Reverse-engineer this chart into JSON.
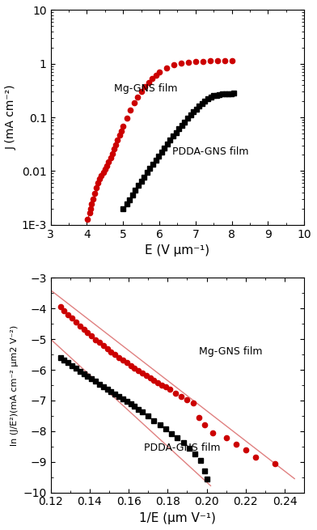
{
  "fig_width": 3.92,
  "fig_height": 6.55,
  "dpi": 100,
  "plot1": {
    "xlabel": "E (V μm⁻¹)",
    "ylabel": "J (mA cm⁻²)",
    "xlim": [
      3,
      10
    ],
    "ylim_log": [
      0.001,
      10
    ],
    "xticks": [
      3,
      4,
      5,
      6,
      7,
      8,
      9,
      10
    ],
    "mg_label": "Mg-GNS film",
    "pdda_label": "PDDA-GNS film",
    "mg_color": "#cc0000",
    "pdda_color": "#000000",
    "mg_marker": "o",
    "pdda_marker": "s",
    "mg_markersize": 4.5,
    "pdda_markersize": 4.5,
    "mg_E": [
      4.02,
      4.07,
      4.1,
      4.13,
      4.17,
      4.21,
      4.25,
      4.3,
      4.35,
      4.4,
      4.45,
      4.5,
      4.55,
      4.6,
      4.65,
      4.7,
      4.75,
      4.8,
      4.85,
      4.9,
      4.95,
      5.0,
      5.1,
      5.2,
      5.3,
      5.4,
      5.5,
      5.6,
      5.7,
      5.8,
      5.9,
      6.0,
      6.2,
      6.4,
      6.6,
      6.8,
      7.0,
      7.2,
      7.4,
      7.6,
      7.8,
      8.0
    ],
    "mg_J": [
      0.00125,
      0.00165,
      0.002,
      0.0024,
      0.003,
      0.0038,
      0.0048,
      0.0061,
      0.0072,
      0.0082,
      0.0093,
      0.0107,
      0.0125,
      0.0148,
      0.0175,
      0.021,
      0.0255,
      0.031,
      0.038,
      0.046,
      0.056,
      0.068,
      0.098,
      0.138,
      0.185,
      0.24,
      0.3,
      0.37,
      0.445,
      0.525,
      0.61,
      0.7,
      0.84,
      0.95,
      1.01,
      1.06,
      1.09,
      1.11,
      1.12,
      1.13,
      1.14,
      1.15
    ],
    "pdda_E": [
      5.0,
      5.1,
      5.18,
      5.26,
      5.34,
      5.42,
      5.5,
      5.58,
      5.66,
      5.74,
      5.82,
      5.9,
      5.98,
      6.06,
      6.14,
      6.22,
      6.3,
      6.38,
      6.46,
      6.54,
      6.62,
      6.7,
      6.78,
      6.86,
      6.94,
      7.02,
      7.1,
      7.18,
      7.26,
      7.34,
      7.42,
      7.5,
      7.58,
      7.66,
      7.74,
      7.82,
      7.9,
      7.98,
      8.06
    ],
    "pdda_J": [
      0.002,
      0.00245,
      0.00295,
      0.0036,
      0.0044,
      0.0054,
      0.0065,
      0.0078,
      0.0094,
      0.0113,
      0.0135,
      0.0161,
      0.0192,
      0.0228,
      0.027,
      0.032,
      0.0378,
      0.0444,
      0.052,
      0.0608,
      0.071,
      0.0825,
      0.0955,
      0.11,
      0.126,
      0.144,
      0.163,
      0.182,
      0.202,
      0.22,
      0.238,
      0.252,
      0.26,
      0.267,
      0.272,
      0.276,
      0.278,
      0.279,
      0.28
    ],
    "mg_line_E": [
      4.02,
      4.45
    ],
    "mg_line_J": [
      0.00125,
      0.0093
    ],
    "line_color_mg": "#cc0000"
  },
  "plot2": {
    "xlabel": "1/E (μm V⁻¹)",
    "ylabel": "ln (J/E²)(mA cm⁻² μm2 V⁻²)",
    "xlim": [
      0.12,
      0.25
    ],
    "ylim": [
      -10,
      -3
    ],
    "xticks": [
      0.12,
      0.14,
      0.16,
      0.18,
      0.2,
      0.22,
      0.24
    ],
    "yticks": [
      -10,
      -9,
      -8,
      -7,
      -6,
      -5,
      -4,
      -3
    ],
    "mg_label": "Mg-GNS film",
    "pdda_label": "PDDA-GNS film",
    "mg_color": "#cc0000",
    "pdda_color": "#000000",
    "mg_marker": "o",
    "pdda_marker": "s",
    "mg_markersize": 4.5,
    "pdda_markersize": 4.5,
    "mg_invE": [
      0.125,
      0.127,
      0.129,
      0.131,
      0.133,
      0.135,
      0.137,
      0.139,
      0.141,
      0.143,
      0.145,
      0.147,
      0.149,
      0.151,
      0.153,
      0.155,
      0.157,
      0.159,
      0.161,
      0.163,
      0.165,
      0.167,
      0.169,
      0.171,
      0.173,
      0.175,
      0.177,
      0.179,
      0.181,
      0.184,
      0.187,
      0.19,
      0.193,
      0.196,
      0.199,
      0.203,
      0.21,
      0.215,
      0.22,
      0.225,
      0.235
    ],
    "mg_lnJE2": [
      -3.93,
      -4.06,
      -4.19,
      -4.32,
      -4.44,
      -4.56,
      -4.68,
      -4.79,
      -4.9,
      -5.01,
      -5.11,
      -5.21,
      -5.31,
      -5.41,
      -5.5,
      -5.59,
      -5.68,
      -5.77,
      -5.86,
      -5.94,
      -6.02,
      -6.1,
      -6.18,
      -6.26,
      -6.34,
      -6.41,
      -6.49,
      -6.56,
      -6.63,
      -6.75,
      -6.86,
      -6.97,
      -7.08,
      -7.55,
      -7.8,
      -8.05,
      -8.22,
      -8.42,
      -8.62,
      -8.85,
      -9.05
    ],
    "pdda_invE": [
      0.125,
      0.127,
      0.129,
      0.131,
      0.133,
      0.135,
      0.137,
      0.139,
      0.141,
      0.143,
      0.145,
      0.147,
      0.149,
      0.151,
      0.153,
      0.155,
      0.157,
      0.159,
      0.161,
      0.163,
      0.165,
      0.167,
      0.17,
      0.173,
      0.176,
      0.179,
      0.182,
      0.185,
      0.188,
      0.191,
      0.194,
      0.197,
      0.199,
      0.2
    ],
    "pdda_lnJE2": [
      -5.6,
      -5.68,
      -5.77,
      -5.86,
      -5.95,
      -6.04,
      -6.12,
      -6.21,
      -6.29,
      -6.37,
      -6.46,
      -6.54,
      -6.62,
      -6.7,
      -6.79,
      -6.87,
      -6.95,
      -7.03,
      -7.11,
      -7.19,
      -7.28,
      -7.36,
      -7.51,
      -7.65,
      -7.79,
      -7.93,
      -8.07,
      -8.22,
      -8.38,
      -8.56,
      -8.74,
      -8.95,
      -9.3,
      -9.55
    ],
    "mg_fit_x": [
      0.12,
      0.245
    ],
    "mg_fit_y": [
      -3.4,
      -9.55
    ],
    "pdda_fit_x": [
      0.12,
      0.202
    ],
    "pdda_fit_y": [
      -5.0,
      -9.78
    ],
    "fit_color": "#e08080"
  }
}
